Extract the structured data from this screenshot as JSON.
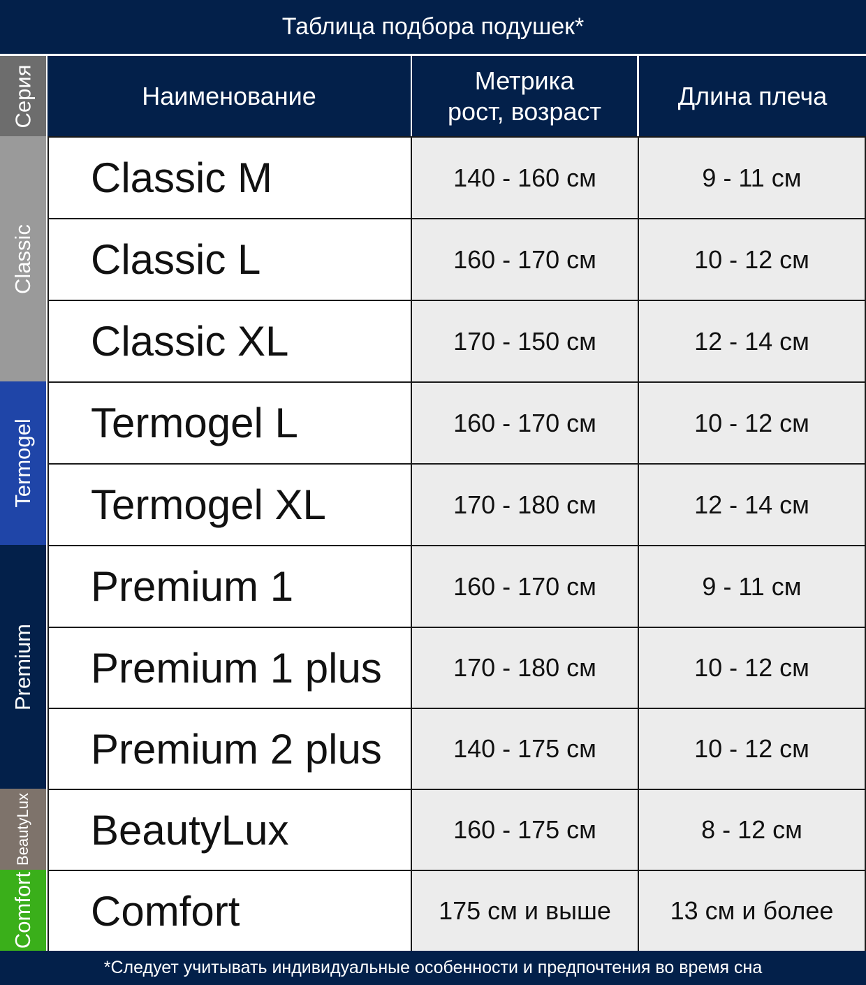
{
  "title": "Таблица подбора подушек*",
  "headers": {
    "series": "Серия",
    "name": "Наименование",
    "metric_line1": "Метрика",
    "metric_line2": "рост, возраст",
    "shoulder": "Длина плеча"
  },
  "colors": {
    "navy": "#03204a",
    "series_header": "#6d6d6d",
    "classic": "#9a9a9a",
    "termogel": "#1f45a8",
    "premium": "#03204a",
    "beautylux": "#7e736b",
    "comfort": "#3aaf1a",
    "value_bg": "#ececec"
  },
  "series": [
    {
      "label": "Classic",
      "color": "#9a9a9a"
    },
    {
      "label": "Termogel",
      "color": "#1f45a8"
    },
    {
      "label": "Premium",
      "color": "#03204a"
    },
    {
      "label": "BeautyLux",
      "color": "#7e736b"
    },
    {
      "label": "Comfort",
      "color": "#3aaf1a"
    }
  ],
  "rows": [
    {
      "name": "Classic M",
      "metric": "140 - 160 см",
      "shoulder": "9 - 11 см"
    },
    {
      "name": "Classic L",
      "metric": "160 - 170 см",
      "shoulder": "10 - 12 см"
    },
    {
      "name": "Classic XL",
      "metric": "170 - 150 см",
      "shoulder": "12 - 14 см"
    },
    {
      "name": "Termogel L",
      "metric": "160 - 170 см",
      "shoulder": "10 - 12 см"
    },
    {
      "name": "Termogel XL",
      "metric": "170 - 180 см",
      "shoulder": "12 - 14 см"
    },
    {
      "name": "Premium 1",
      "metric": "160 - 170 см",
      "shoulder": "9 - 11 см"
    },
    {
      "name": "Premium 1 plus",
      "metric": "170 - 180 см",
      "shoulder": "10 - 12 см"
    },
    {
      "name": "Premium 2 plus",
      "metric": "140 - 175 см",
      "shoulder": "10 - 12 см"
    },
    {
      "name": "BeautyLux",
      "metric": "160 - 175 см",
      "shoulder": "8 - 12 см"
    },
    {
      "name": "Comfort",
      "metric": "175 см и выше",
      "shoulder": "13 см и более"
    }
  ],
  "footer": "*Следует учитывать индивидуальные особенности и предпочтения во время сна"
}
